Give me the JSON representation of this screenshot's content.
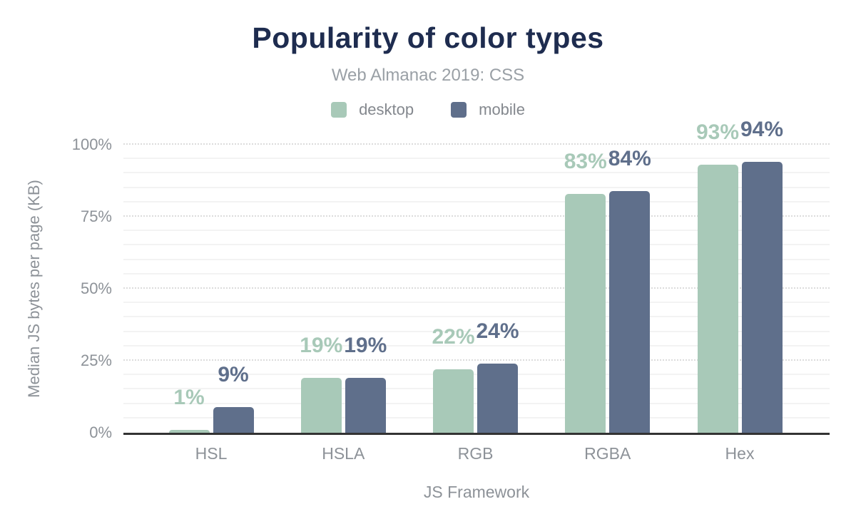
{
  "chart_data": {
    "type": "bar",
    "title": "Popularity of color types",
    "subtitle": "Web Almanac 2019: CSS",
    "xlabel": "JS Framework",
    "ylabel": "Median JS bytes per page (KB)",
    "categories": [
      "HSL",
      "HSLA",
      "RGB",
      "RGBA",
      "Hex"
    ],
    "series": [
      {
        "name": "desktop",
        "color": "#a8c9b8",
        "values": [
          1,
          19,
          22,
          83,
          93
        ],
        "labels": [
          "1%",
          "19%",
          "22%",
          "83%",
          "93%"
        ]
      },
      {
        "name": "mobile",
        "color": "#5f6f8b",
        "values": [
          9,
          19,
          24,
          84,
          94
        ],
        "labels": [
          "9%",
          "19%",
          "24%",
          "84%",
          "94%"
        ]
      }
    ],
    "yticks": [
      "0%",
      "25%",
      "50%",
      "75%",
      "100%"
    ],
    "ylim": [
      0,
      100
    ],
    "grid": {
      "minor_step": 5,
      "major_step": 25,
      "minor_color": "#f3f3f3",
      "major_color": "#dcdcdc"
    },
    "legend_position": "top",
    "axis_line_color": "#333333",
    "text_colors": {
      "title": "#1e2c4f",
      "subtitle": "#9aa0a6",
      "axis": "#8d9298",
      "legend": "#84888e"
    }
  }
}
